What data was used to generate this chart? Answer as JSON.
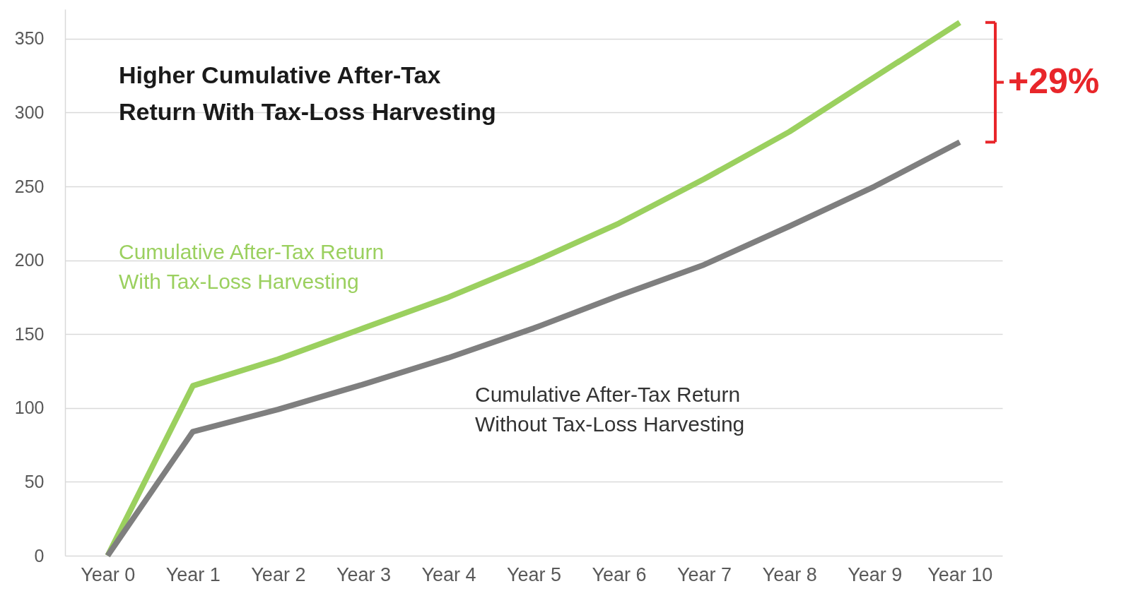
{
  "chart_data": {
    "type": "line",
    "title": "Higher Cumulative After-Tax Return With Tax-Loss Harvesting",
    "categories": [
      "Year 0",
      "Year 1",
      "Year 2",
      "Year 3",
      "Year 4",
      "Year 5",
      "Year 6",
      "Year 7",
      "Year 8",
      "Year 9",
      "Year 10"
    ],
    "series": [
      {
        "name": "Cumulative After-Tax Return With Tax-Loss Harvesting",
        "color": "#9bd05f",
        "values": [
          0,
          115,
          133,
          154,
          175,
          199,
          225,
          255,
          287,
          324,
          361
        ]
      },
      {
        "name": "Cumulative After-Tax Return Without Tax-Loss Harvesting",
        "color": "#7f7f7f",
        "values": [
          0,
          84,
          99,
          116,
          134,
          154,
          176,
          197,
          223,
          250,
          280
        ]
      }
    ],
    "ylim": [
      0,
      370
    ],
    "yticks": [
      0,
      50,
      100,
      150,
      200,
      250,
      300,
      350
    ],
    "grid": "y",
    "marker": "none",
    "line_style": "solid",
    "annotations": [
      "+29%"
    ]
  }
}
